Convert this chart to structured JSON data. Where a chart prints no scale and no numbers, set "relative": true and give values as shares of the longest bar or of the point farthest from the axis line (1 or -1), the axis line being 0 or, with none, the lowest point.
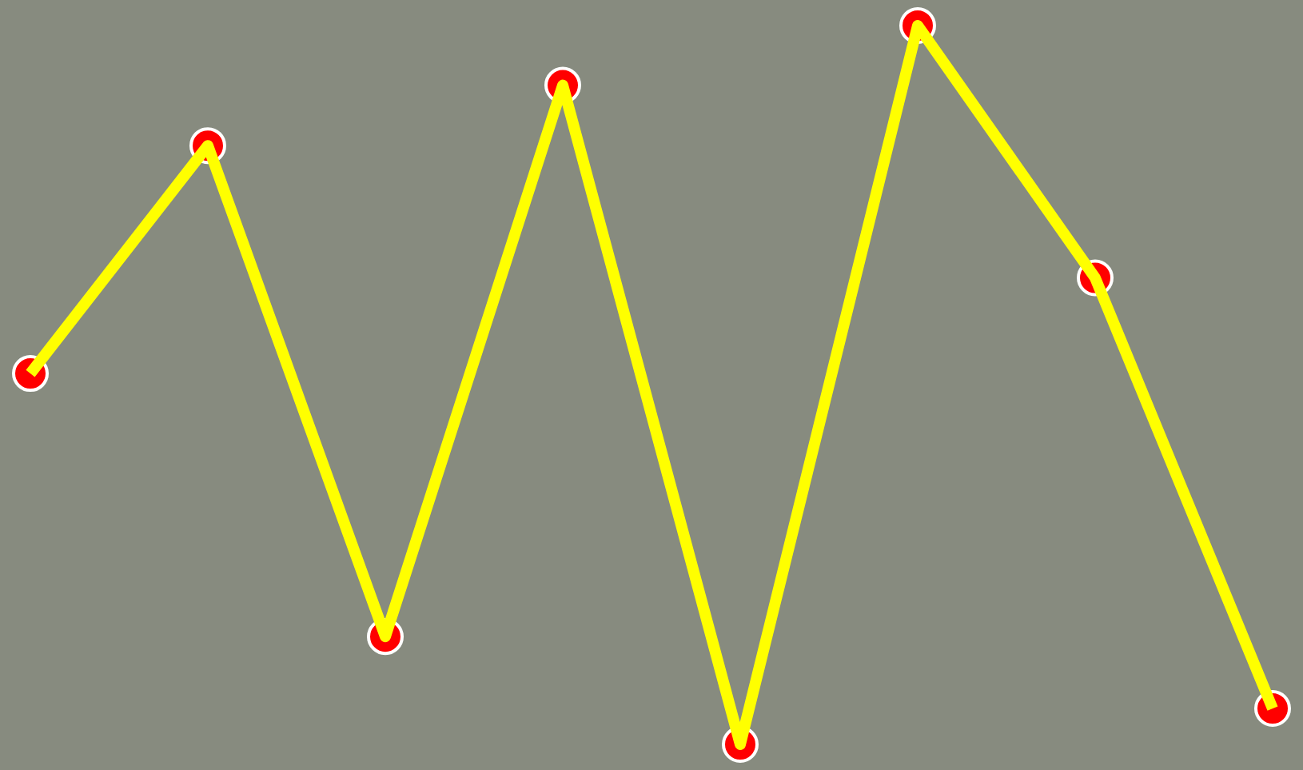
{
  "chart_data": {
    "type": "line",
    "relative": true,
    "categories": [
      null,
      null,
      null,
      null,
      null,
      null,
      null,
      null
    ],
    "series": [
      {
        "color": "#ffff00",
        "values": [
          0.516,
          0.833,
          0.15,
          0.917,
          0,
          1,
          0.649,
          0.05
        ]
      }
    ],
    "marker": "circle",
    "line_style": "solid",
    "grid": false
  }
}
